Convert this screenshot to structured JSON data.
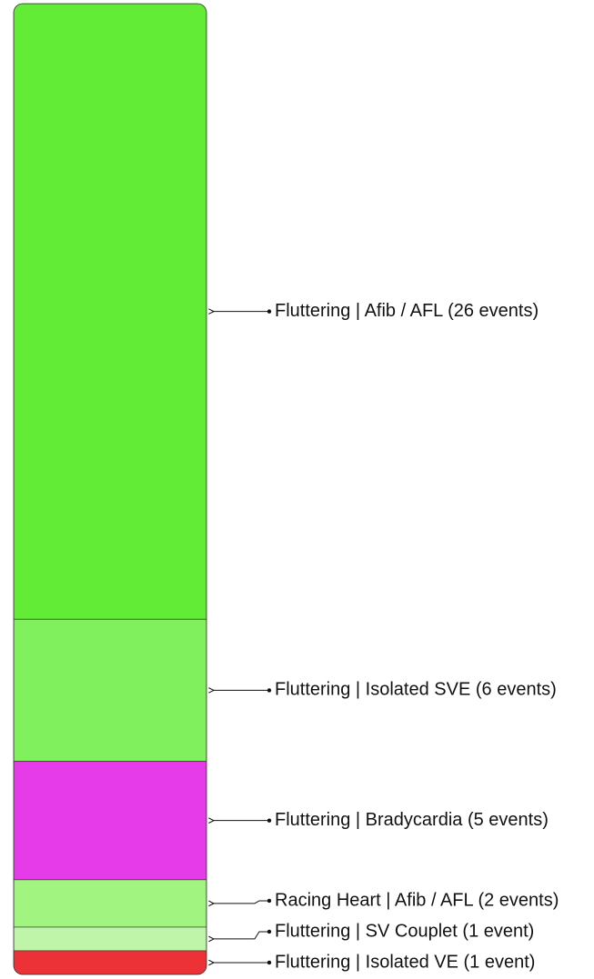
{
  "chart_data": {
    "type": "stacked-bar",
    "categories": [
      "Fluttering | Afib / AFL (26 events)",
      "Fluttering | Isolated SVE (6 events)",
      "Fluttering | Bradycardia (5 events)",
      "Racing Heart | Afib / AFL (2 events)",
      "Fluttering | SV Couplet (1 event)",
      "Fluttering | Isolated VE (1 event)"
    ],
    "values": [
      26,
      6,
      5,
      2,
      1,
      1
    ],
    "colors": [
      "#62ec36",
      "#80f05c",
      "#e53be8",
      "#a0f47f",
      "#bff5a8",
      "#ec3237"
    ]
  }
}
